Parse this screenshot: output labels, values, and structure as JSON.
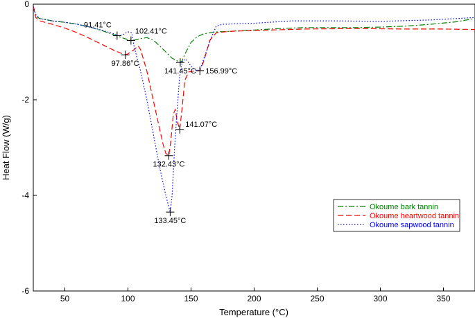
{
  "chart_data": {
    "type": "line",
    "xlabel": "Temperature (°C)",
    "ylabel": "Heat Flow (W/g)",
    "xlim": [
      25,
      375
    ],
    "ylim": [
      -6,
      0
    ],
    "x_ticks": [
      50,
      100,
      150,
      200,
      250,
      300,
      350
    ],
    "y_ticks": [
      0,
      -2,
      -4,
      -6
    ],
    "x_tick_labels": [
      "50",
      "100",
      "150",
      "200",
      "250",
      "300",
      "350"
    ],
    "y_tick_labels": [
      "0",
      "-2",
      "-4",
      "-6"
    ],
    "grid": false,
    "legend_position": "bottom-right",
    "series": [
      {
        "name": "Okoume bark tannin",
        "color": "#008000",
        "dash": "dashdot",
        "points": [
          [
            25,
            -0.05
          ],
          [
            27,
            -0.25
          ],
          [
            30,
            -0.3
          ],
          [
            40,
            -0.35
          ],
          [
            50,
            -0.38
          ],
          [
            60,
            -0.42
          ],
          [
            70,
            -0.48
          ],
          [
            80,
            -0.56
          ],
          [
            90,
            -0.65
          ],
          [
            95,
            -0.7
          ],
          [
            100,
            -0.74
          ],
          [
            102.4,
            -0.76
          ],
          [
            105,
            -0.75
          ],
          [
            110,
            -0.72
          ],
          [
            115,
            -0.7
          ],
          [
            120,
            -0.75
          ],
          [
            125,
            -0.87
          ],
          [
            130,
            -1.0
          ],
          [
            135,
            -1.13
          ],
          [
            140,
            -1.2
          ],
          [
            141.45,
            -1.22
          ],
          [
            143,
            -1.18
          ],
          [
            145,
            -1.05
          ],
          [
            150,
            -0.8
          ],
          [
            155,
            -0.68
          ],
          [
            160,
            -0.62
          ],
          [
            165,
            -0.6
          ],
          [
            170,
            -0.58
          ],
          [
            180,
            -0.57
          ],
          [
            200,
            -0.54
          ],
          [
            220,
            -0.51
          ],
          [
            240,
            -0.49
          ],
          [
            260,
            -0.49
          ],
          [
            280,
            -0.49
          ],
          [
            300,
            -0.48
          ],
          [
            320,
            -0.46
          ],
          [
            340,
            -0.42
          ],
          [
            360,
            -0.37
          ],
          [
            375,
            -0.3
          ]
        ]
      },
      {
        "name": "Okoume heartwood tannin",
        "color": "#ff0000",
        "dash": "dashed",
        "points": [
          [
            25,
            -0.05
          ],
          [
            27,
            -0.28
          ],
          [
            30,
            -0.35
          ],
          [
            40,
            -0.42
          ],
          [
            50,
            -0.5
          ],
          [
            60,
            -0.6
          ],
          [
            70,
            -0.72
          ],
          [
            80,
            -0.85
          ],
          [
            90,
            -0.98
          ],
          [
            97.86,
            -1.06
          ],
          [
            100,
            -1.04
          ],
          [
            105,
            -0.95
          ],
          [
            108,
            -0.87
          ],
          [
            110,
            -0.95
          ],
          [
            115,
            -1.4
          ],
          [
            120,
            -2.0
          ],
          [
            125,
            -2.6
          ],
          [
            128,
            -2.95
          ],
          [
            130,
            -3.12
          ],
          [
            132.43,
            -3.17
          ],
          [
            134,
            -2.85
          ],
          [
            136,
            -2.3
          ],
          [
            137.5,
            -2.2
          ],
          [
            139,
            -2.45
          ],
          [
            141.07,
            -2.62
          ],
          [
            143,
            -2.15
          ],
          [
            145,
            -1.6
          ],
          [
            148,
            -1.42
          ],
          [
            152,
            -1.4
          ],
          [
            156.99,
            -1.39
          ],
          [
            160,
            -1.2
          ],
          [
            165,
            -0.75
          ],
          [
            170,
            -0.6
          ],
          [
            180,
            -0.57
          ],
          [
            200,
            -0.55
          ],
          [
            240,
            -0.52
          ],
          [
            280,
            -0.51
          ],
          [
            320,
            -0.52
          ],
          [
            350,
            -0.52
          ],
          [
            375,
            -0.53
          ]
        ]
      },
      {
        "name": "Okoume sapwood tannin",
        "color": "#0000ff",
        "dash": "dotted",
        "points": [
          [
            25,
            -0.05
          ],
          [
            27,
            -0.22
          ],
          [
            30,
            -0.3
          ],
          [
            40,
            -0.35
          ],
          [
            50,
            -0.38
          ],
          [
            60,
            -0.42
          ],
          [
            70,
            -0.48
          ],
          [
            80,
            -0.55
          ],
          [
            90,
            -0.63
          ],
          [
            91.41,
            -0.66
          ],
          [
            95,
            -0.65
          ],
          [
            100,
            -0.58
          ],
          [
            103,
            -0.6
          ],
          [
            105,
            -0.9
          ],
          [
            110,
            -1.4
          ],
          [
            115,
            -2.0
          ],
          [
            120,
            -2.7
          ],
          [
            125,
            -3.4
          ],
          [
            130,
            -4.0
          ],
          [
            133.45,
            -4.35
          ],
          [
            135,
            -4.0
          ],
          [
            137,
            -3.0
          ],
          [
            139,
            -2.2
          ],
          [
            141,
            -1.5
          ],
          [
            143,
            -1.2
          ],
          [
            146,
            -1.15
          ],
          [
            150,
            -1.3
          ],
          [
            155,
            -1.4
          ],
          [
            158,
            -1.3
          ],
          [
            162,
            -1.0
          ],
          [
            166,
            -0.7
          ],
          [
            170,
            -0.46
          ],
          [
            175,
            -0.42
          ],
          [
            200,
            -0.4
          ],
          [
            230,
            -0.35
          ],
          [
            260,
            -0.35
          ],
          [
            300,
            -0.36
          ],
          [
            340,
            -0.33
          ],
          [
            375,
            -0.28
          ]
        ]
      }
    ],
    "markers": [
      {
        "label": "91.41°C",
        "x": 91.41,
        "y": -0.66,
        "series": 2,
        "label_pos": "above-left"
      },
      {
        "label": "102.41°C",
        "x": 102.41,
        "y": -0.76,
        "series": 0,
        "label_pos": "above-right"
      },
      {
        "label": "97.86°C",
        "x": 97.86,
        "y": -1.06,
        "series": 1,
        "label_pos": "below"
      },
      {
        "label": "141.45°C",
        "x": 141.45,
        "y": -1.22,
        "series": 0,
        "label_pos": "below"
      },
      {
        "label": "156.99°C",
        "x": 156.99,
        "y": -1.39,
        "series": 1,
        "label_pos": "right"
      },
      {
        "label": "141.07°C",
        "x": 141.07,
        "y": -2.62,
        "series": 1,
        "label_pos": "upper-right"
      },
      {
        "label": "132.43°C",
        "x": 132.43,
        "y": -3.17,
        "series": 1,
        "label_pos": "below"
      },
      {
        "label": "133.45°C",
        "x": 133.45,
        "y": -4.35,
        "series": 2,
        "label_pos": "below"
      }
    ]
  }
}
